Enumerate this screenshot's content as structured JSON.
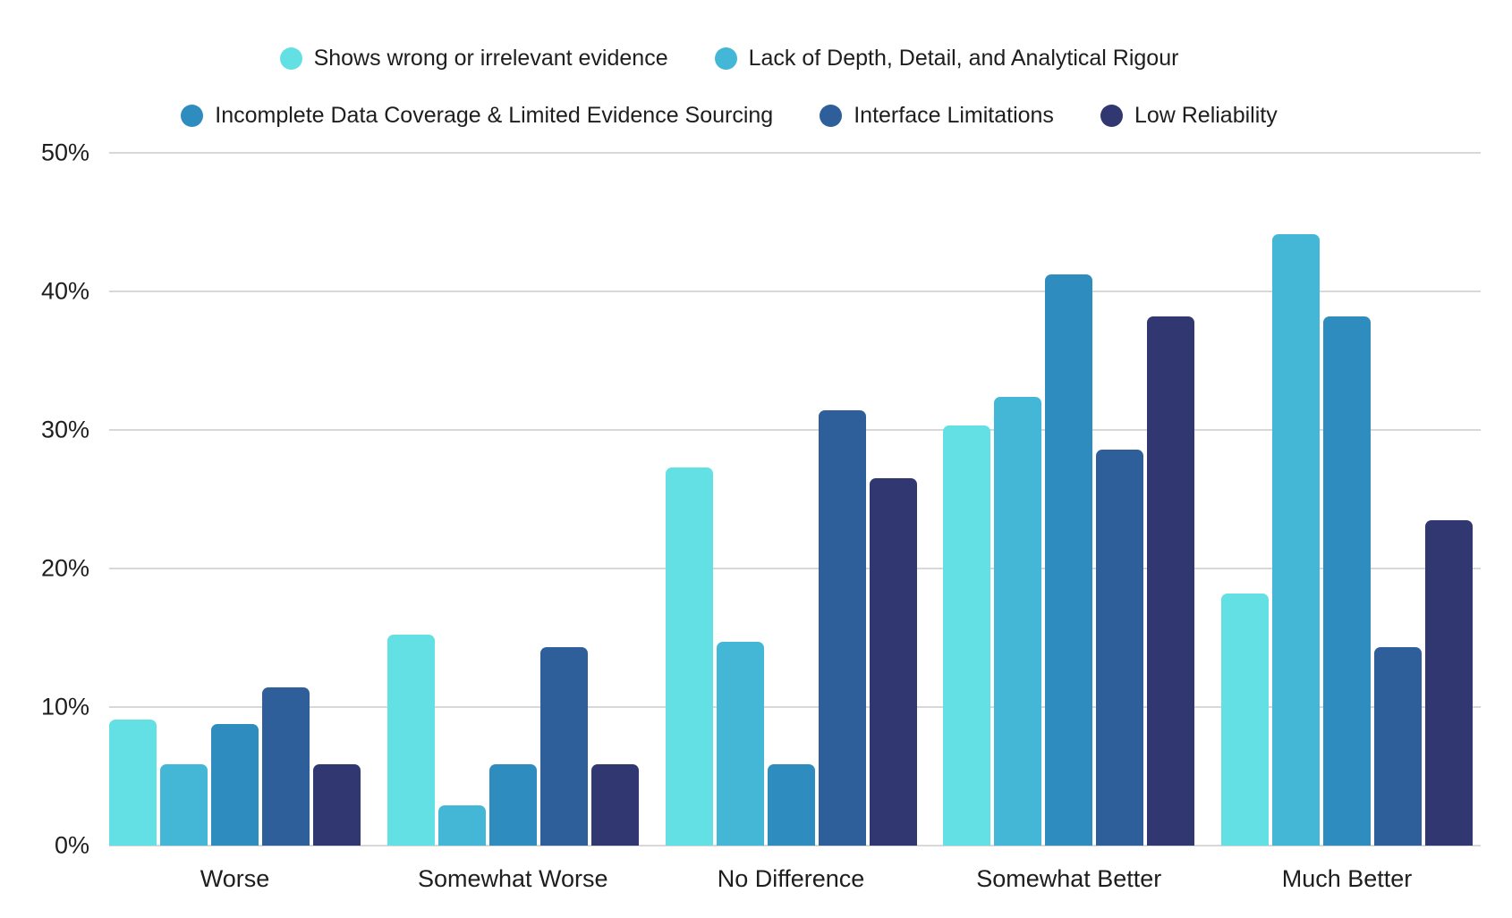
{
  "chart_data": {
    "type": "bar",
    "title": "",
    "categories": [
      "Worse",
      "Somewhat Worse",
      "No Difference",
      "Somewhat Better",
      "Much Better"
    ],
    "series": [
      {
        "name": "Shows wrong or irrelevant evidence",
        "color": "#63E0E4",
        "values": [
          9.1,
          15.2,
          27.3,
          30.3,
          18.2
        ]
      },
      {
        "name": "Lack of Depth, Detail, and Analytical Rigour",
        "color": "#45B7D6",
        "values": [
          5.9,
          2.9,
          14.7,
          32.4,
          44.1
        ]
      },
      {
        "name": "Incomplete Data Coverage & Limited Evidence Sourcing",
        "color": "#2E8DBE",
        "values": [
          8.8,
          5.9,
          5.9,
          41.2,
          38.2
        ]
      },
      {
        "name": "Interface Limitations",
        "color": "#2F5F9B",
        "values": [
          11.4,
          14.3,
          31.4,
          28.6,
          14.3
        ]
      },
      {
        "name": "Low Reliability",
        "color": "#313770",
        "values": [
          5.9,
          5.9,
          26.5,
          38.2,
          23.5
        ]
      }
    ],
    "xlabel": "",
    "ylabel": "",
    "ylim": [
      0,
      50
    ],
    "y_axis": {
      "tick_values": [
        0,
        10,
        20,
        30,
        40,
        50
      ],
      "tick_labels": [
        "0%",
        "10%",
        "20%",
        "30%",
        "40%",
        "50%"
      ],
      "grid": true
    },
    "legend": {
      "position": "top",
      "row_split": 2
    }
  },
  "colors": {
    "background": "#ffffff",
    "grid": "#d8d8d8",
    "text": "#1e1e1e"
  }
}
